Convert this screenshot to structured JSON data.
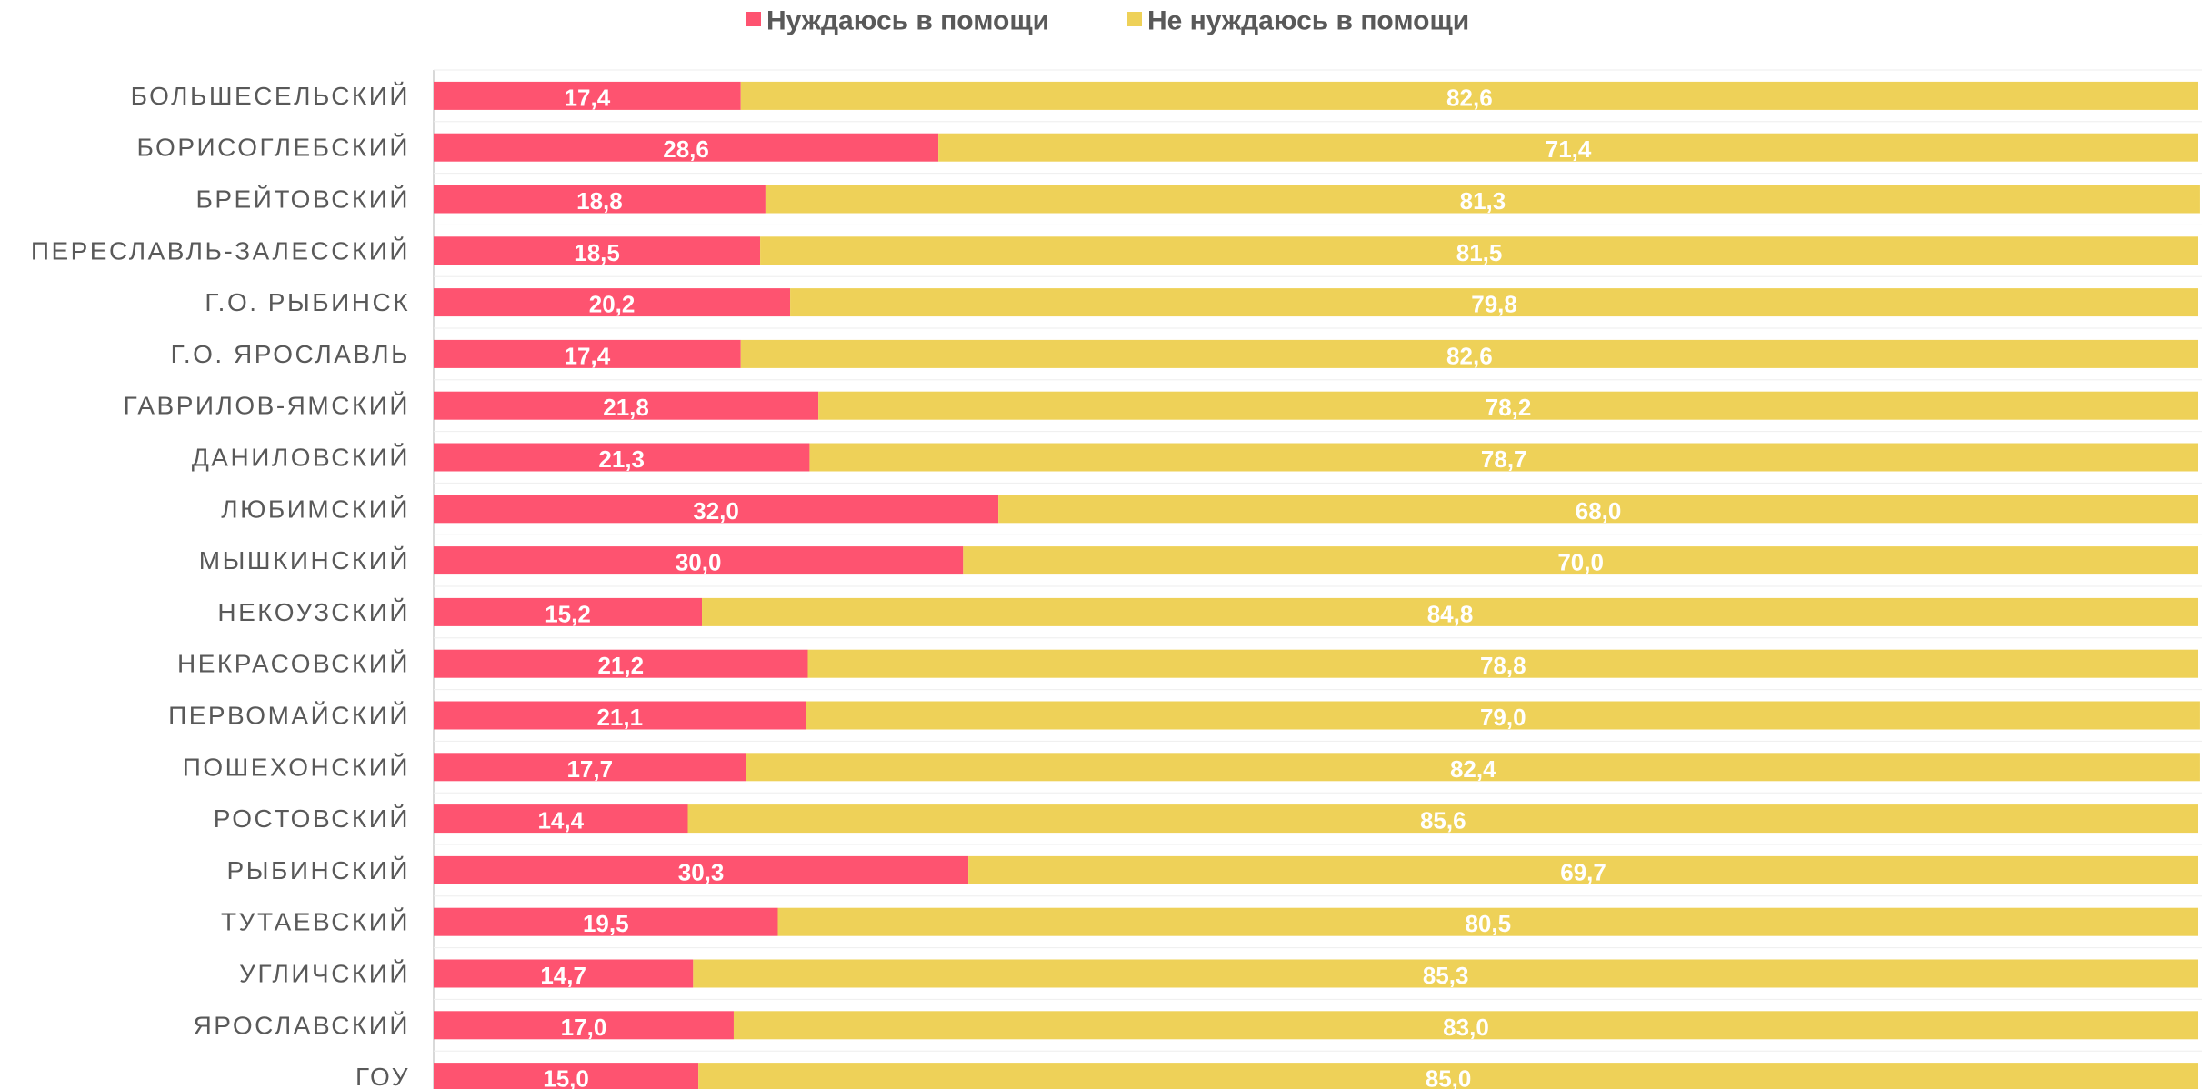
{
  "chart_data": {
    "type": "stacked-bar-horizontal",
    "categories": [
      "БОЛЬШЕСЕЛЬСКИЙ",
      "БОРИСОГЛЕБСКИЙ",
      "БРЕЙТОВСКИЙ",
      "ПЕРЕСЛАВЛЬ-ЗАЛЕССКИЙ",
      "Г.О. РЫБИНСК",
      "Г.О. ЯРОСЛАВЛЬ",
      "ГАВРИЛОВ-ЯМСКИЙ",
      "ДАНИЛОВСКИЙ",
      "ЛЮБИМСКИЙ",
      "МЫШКИНСКИЙ",
      "НЕКОУЗСКИЙ",
      "НЕКРАСОВСКИЙ",
      "ПЕРВОМАЙСКИЙ",
      "ПОШЕХОНСКИЙ",
      "РОСТОВСКИЙ",
      "РЫБИНСКИЙ",
      "ТУТАЕВСКИЙ",
      "УГЛИЧСКИЙ",
      "ЯРОСЛАВСКИЙ",
      "ГОУ"
    ],
    "series": [
      {
        "name": "Нуждаюсь в помощи",
        "color": "#fe5370",
        "values": [
          17.4,
          28.6,
          18.8,
          18.5,
          20.2,
          17.4,
          21.8,
          21.3,
          32.0,
          30.0,
          15.2,
          21.2,
          21.1,
          17.7,
          14.4,
          30.3,
          19.5,
          14.7,
          17.0,
          15.0
        ],
        "value_labels": [
          "17,4",
          "28,6",
          "18,8",
          "18,5",
          "20,2",
          "17,4",
          "21,8",
          "21,3",
          "32,0",
          "30,0",
          "15,2",
          "21,2",
          "21,1",
          "17,7",
          "14,4",
          "30,3",
          "19,5",
          "14,7",
          "17,0",
          "15,0"
        ]
      },
      {
        "name": "Не нуждаюсь в помощи",
        "color": "#eed158",
        "values": [
          82.6,
          71.4,
          81.3,
          81.5,
          79.8,
          82.6,
          78.2,
          78.7,
          68.0,
          70.0,
          84.8,
          78.8,
          79.0,
          82.4,
          85.6,
          69.7,
          80.5,
          85.3,
          83.0,
          85.0
        ],
        "value_labels": [
          "82,6",
          "71,4",
          "81,3",
          "81,5",
          "79,8",
          "82,6",
          "78,2",
          "78,7",
          "68,0",
          "70,0",
          "84,8",
          "78,8",
          "79,0",
          "82,4",
          "85,6",
          "69,7",
          "80,5",
          "85,3",
          "83,0",
          "85,0"
        ]
      }
    ],
    "xlim": [
      0,
      100
    ],
    "legend": "top"
  }
}
